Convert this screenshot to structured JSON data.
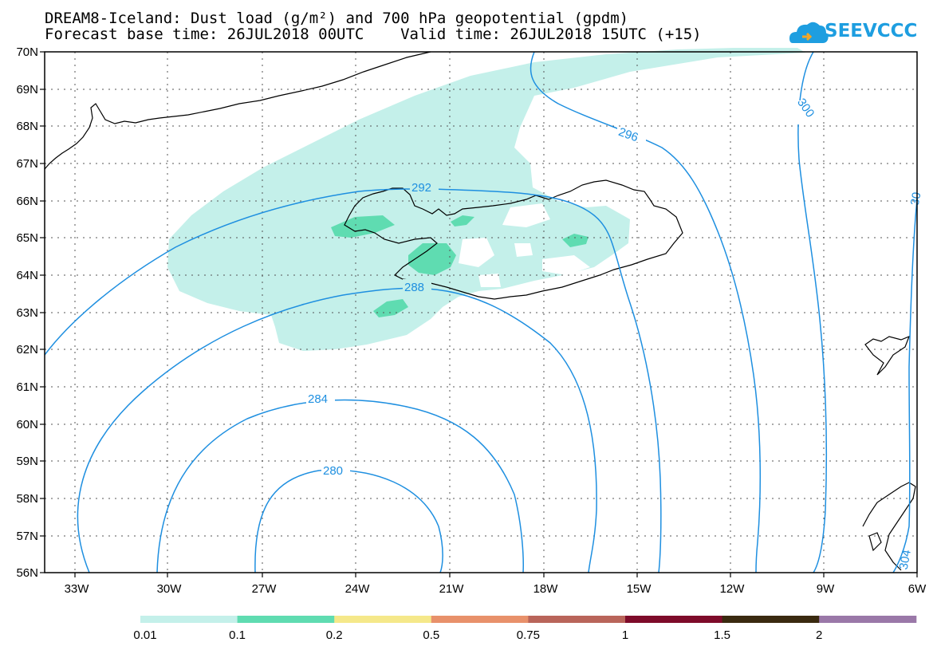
{
  "title_line1": "DREAM8-Iceland: Dust load (g/m²) and 700 hPa geopotential (gpdm)",
  "title_line2": "Forecast base time: 26JUL2018 00UTC    Valid time: 26JUL2018 15UTC (+15)",
  "logo_text": "SEEVCCC",
  "latitude_labels": [
    "70N",
    "69N",
    "68N",
    "67N",
    "66N",
    "65N",
    "64N",
    "63N",
    "62N",
    "61N",
    "60N",
    "59N",
    "58N",
    "57N",
    "56N"
  ],
  "longitude_labels": [
    "33W",
    "30W",
    "27W",
    "24W",
    "21W",
    "18W",
    "15W",
    "12W",
    "9W",
    "6W"
  ],
  "contour_labels": [
    "292",
    "296",
    "300",
    "288",
    "284",
    "280",
    "304",
    "30"
  ],
  "colorbar": {
    "colors": [
      "#c4f0ea",
      "#5fdcb1",
      "#f5e88a",
      "#e8916b",
      "#b9655a",
      "#7e0b2a",
      "#3a2a10",
      "#9a78a8"
    ],
    "labels": [
      "0.01",
      "0.1",
      "0.2",
      "0.5",
      "0.75",
      "1",
      "1.5",
      "2"
    ]
  },
  "colors": {
    "contour": "#1e8fe0",
    "coast": "#000000"
  }
}
